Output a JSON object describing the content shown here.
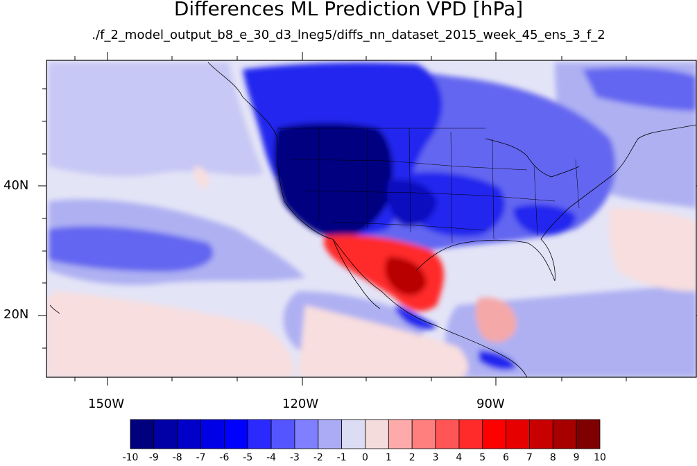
{
  "title": "Differences ML Prediction VPD [hPa]",
  "subtitle": "./f_2_model_output_b8_e_30_d3_lneg5/diffs_nn_dataset_2015_week_45_ens_3_f_2",
  "axes": {
    "lon_labels": [
      "150W",
      "120W",
      "90W"
    ],
    "lat_labels": [
      "40N",
      "20N"
    ]
  },
  "colorbar": {
    "labels": [
      "-10",
      "-9",
      "-8",
      "-7",
      "-6",
      "-5",
      "-4",
      "-3",
      "-2",
      "-1",
      "0",
      "1",
      "2",
      "3",
      "4",
      "5",
      "6",
      "7",
      "8",
      "9",
      "10"
    ],
    "colors": [
      "#00007f",
      "#0000a6",
      "#0000c8",
      "#0000e6",
      "#0000ff",
      "#2a2aff",
      "#5555ff",
      "#7f7fff",
      "#aaaaf5",
      "#dcdcf5",
      "#f5dcdc",
      "#ffaaaa",
      "#ff7f7f",
      "#ff5555",
      "#ff2a2a",
      "#ff0000",
      "#e60000",
      "#c80000",
      "#a60000",
      "#7f0000"
    ]
  },
  "map_colors": {
    "background": "#e4e4f7",
    "light_blue": "#aeb0f2",
    "mid_blue": "#6466f0",
    "blue": "#2225ee",
    "deep_blue": "#0b0bc0",
    "navy": "#010180",
    "light_red": "#f8dede",
    "pink": "#f4a8a8",
    "red": "#ff2a2a",
    "dark_red": "#b80000"
  }
}
